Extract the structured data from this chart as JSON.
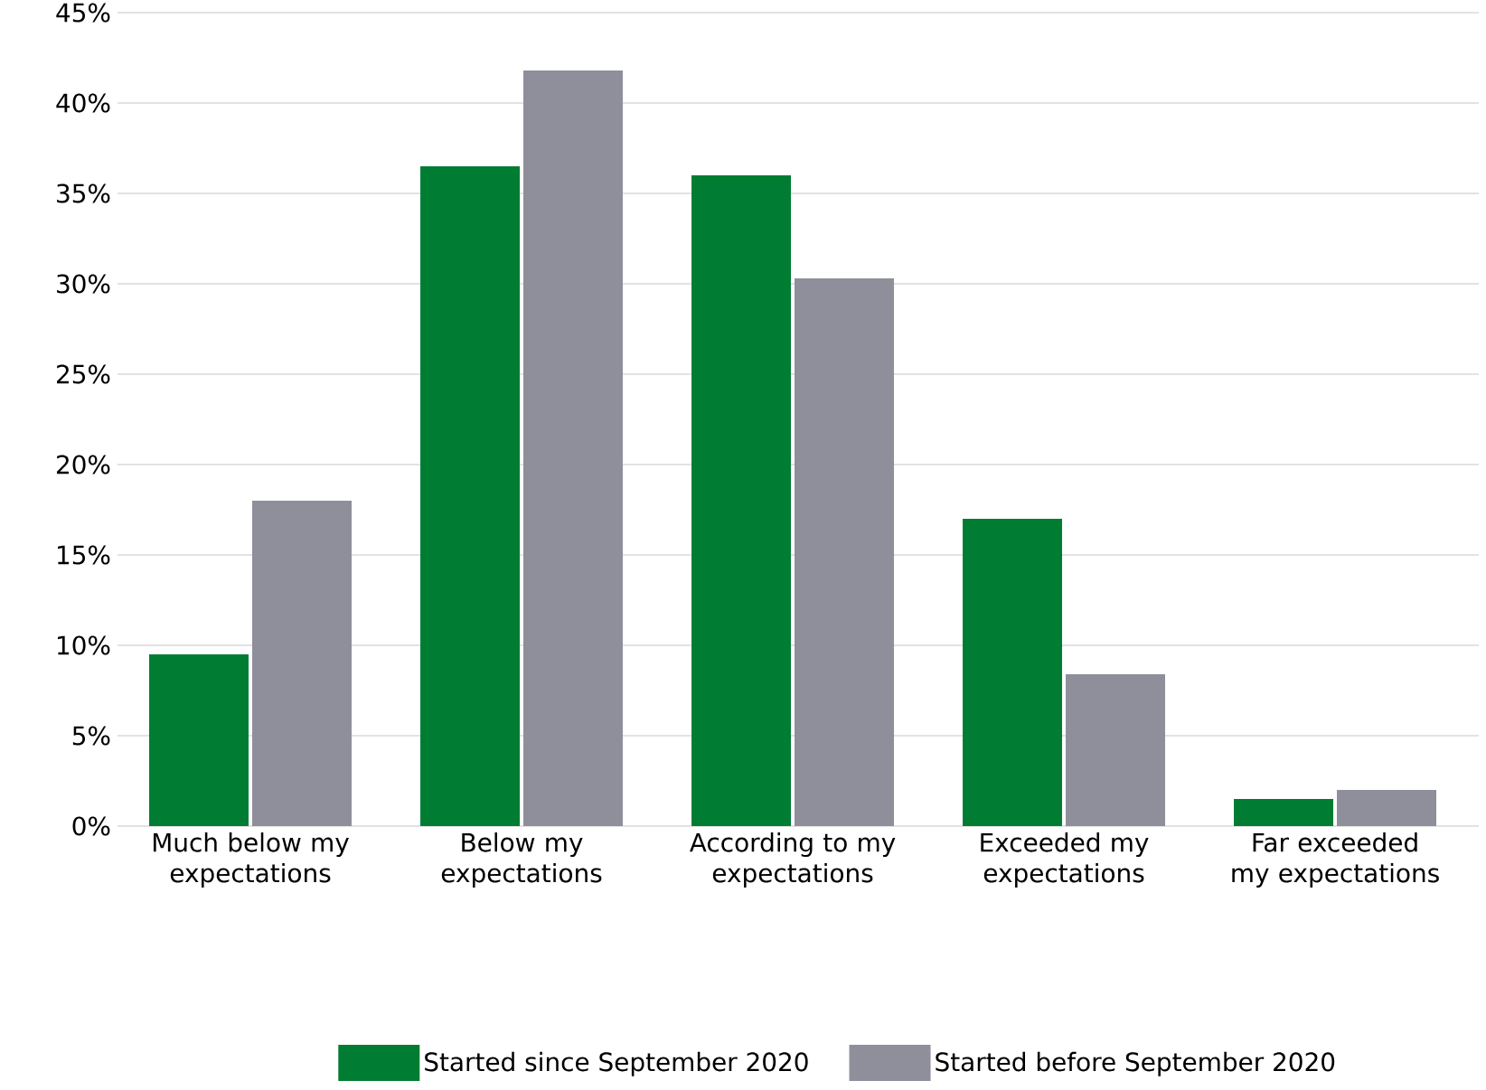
{
  "chart_data": {
    "type": "bar",
    "categories": [
      "Much below my expectations",
      "Below my expectations",
      "According to my expectations",
      "Exceeded my expectations",
      "Far exceeded my expectations"
    ],
    "series": [
      {
        "name": "Started since September 2020",
        "color": "#007d32",
        "values": [
          9.5,
          36.5,
          36,
          17,
          1.5
        ]
      },
      {
        "name": "Started before September 2020",
        "color": "#8e8f9b",
        "values": [
          18,
          41.8,
          30.3,
          8.4,
          2
        ]
      }
    ],
    "ylim": [
      0,
      45
    ],
    "yticks": [
      {
        "value": 0,
        "label": "0%"
      },
      {
        "value": 5,
        "label": "5%"
      },
      {
        "value": 10,
        "label": "10%"
      },
      {
        "value": 15,
        "label": "15%"
      },
      {
        "value": 20,
        "label": "20%"
      },
      {
        "value": 25,
        "label": "25%"
      },
      {
        "value": 30,
        "label": "30%"
      },
      {
        "value": 35,
        "label": "35%"
      },
      {
        "value": 40,
        "label": "40%"
      },
      {
        "value": 45,
        "label": "45%"
      }
    ],
    "grid": "y",
    "legend": "bottom"
  }
}
